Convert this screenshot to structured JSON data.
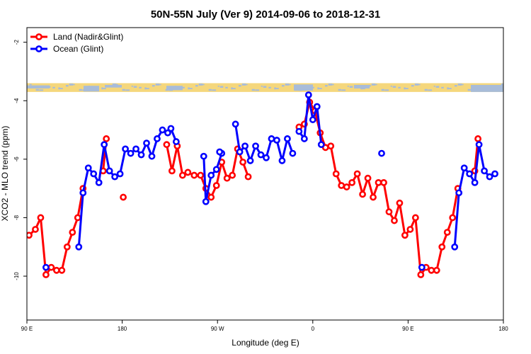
{
  "chart_data": {
    "type": "line",
    "title": "50N-55N July (Ver 9)   2014-09-06 to 2018-12-31",
    "xlabel": "Longitude (deg E)",
    "ylabel": "XCO2 - MLO trend (ppm)",
    "x_ticks": [
      {
        "value": 90,
        "label": "90 E"
      },
      {
        "value": 180,
        "label": "180"
      },
      {
        "value": 270,
        "label": "90 W"
      },
      {
        "value": 360,
        "label": "0"
      },
      {
        "value": 450,
        "label": "90 E"
      },
      {
        "value": 540,
        "label": "180"
      }
    ],
    "y_ticks": [
      {
        "value": -10,
        "label": "-10"
      },
      {
        "value": -8,
        "label": "-8"
      },
      {
        "value": -6,
        "label": "-6"
      },
      {
        "value": -4,
        "label": "-4"
      },
      {
        "value": -2,
        "label": "-2"
      }
    ],
    "xlim": [
      90,
      540
    ],
    "ylim": [
      -11.5,
      -1.5
    ],
    "grid": false,
    "legend_position": "top-left",
    "land_strip": {
      "y_range": [
        -3.7,
        -3.4
      ],
      "land_color": "#f5d77c",
      "ocean_color": "#a8bcd9"
    },
    "series": [
      {
        "name": "Land (Nadir&Glint)",
        "color": "#ff0000",
        "segments": [
          [
            [
              92,
              -8.6
            ],
            [
              98,
              -8.4
            ],
            [
              103,
              -8.0
            ],
            [
              108,
              -9.95
            ],
            [
              113,
              -9.7
            ],
            [
              118,
              -9.8
            ],
            [
              123,
              -9.8
            ],
            [
              128,
              -9.0
            ],
            [
              133,
              -8.5
            ],
            [
              138,
              -8.0
            ],
            [
              143,
              -7.0
            ]
          ],
          [
            [
              162,
              -6.4
            ],
            [
              165,
              -5.3
            ]
          ],
          [
            [
              181,
              -7.3
            ]
          ],
          [
            [
              222,
              -5.5
            ],
            [
              227,
              -6.4
            ],
            [
              232,
              -5.55
            ],
            [
              237,
              -6.55
            ],
            [
              242,
              -6.45
            ],
            [
              248,
              -6.55
            ],
            [
              254,
              -6.55
            ],
            [
              259,
              -7.0
            ],
            [
              264,
              -7.3
            ],
            [
              269,
              -6.9
            ],
            [
              274,
              -6.1
            ],
            [
              279,
              -6.65
            ],
            [
              284,
              -6.55
            ],
            [
              289,
              -5.65
            ],
            [
              294,
              -6.1
            ],
            [
              299,
              -6.6
            ]
          ],
          [
            [
              347,
              -4.9
            ],
            [
              352,
              -4.8
            ],
            [
              357,
              -4.05
            ],
            [
              362,
              -4.35
            ],
            [
              367,
              -5.1
            ],
            [
              372,
              -5.6
            ],
            [
              377,
              -5.55
            ],
            [
              382,
              -6.5
            ],
            [
              387,
              -6.9
            ],
            [
              392,
              -6.95
            ],
            [
              397,
              -6.8
            ],
            [
              402,
              -6.5
            ],
            [
              407,
              -7.2
            ],
            [
              412,
              -6.65
            ],
            [
              417,
              -7.3
            ],
            [
              422,
              -6.8
            ],
            [
              427,
              -6.8
            ],
            [
              432,
              -7.8
            ],
            [
              437,
              -8.1
            ],
            [
              442,
              -7.5
            ],
            [
              447,
              -8.6
            ],
            [
              452,
              -8.4
            ],
            [
              457,
              -8.0
            ],
            [
              462,
              -9.95
            ],
            [
              467,
              -9.7
            ],
            [
              472,
              -9.8
            ],
            [
              477,
              -9.8
            ],
            [
              482,
              -9.0
            ],
            [
              487,
              -8.5
            ],
            [
              492,
              -8.0
            ],
            [
              497,
              -7.0
            ]
          ],
          [
            [
              513,
              -6.4
            ],
            [
              516,
              -5.3
            ]
          ]
        ]
      },
      {
        "name": "Ocean (Glint)",
        "color": "#0000ff",
        "segments": [
          [
            [
              108,
              -9.7
            ]
          ],
          [
            [
              139,
              -9.0
            ],
            [
              143,
              -7.15
            ],
            [
              148,
              -6.3
            ],
            [
              153,
              -6.5
            ],
            [
              158,
              -6.8
            ],
            [
              163,
              -5.5
            ],
            [
              168,
              -6.4
            ],
            [
              173,
              -6.6
            ],
            [
              178,
              -6.5
            ],
            [
              183,
              -5.65
            ],
            [
              188,
              -5.8
            ],
            [
              193,
              -5.65
            ],
            [
              198,
              -5.85
            ],
            [
              203,
              -5.45
            ],
            [
              208,
              -5.9
            ],
            [
              213,
              -5.3
            ],
            [
              218,
              -5.0
            ],
            [
              223,
              -5.1
            ],
            [
              226,
              -4.95
            ],
            [
              231,
              -5.4
            ]
          ],
          [
            [
              257,
              -5.9
            ],
            [
              259,
              -7.45
            ],
            [
              264,
              -6.55
            ],
            [
              269,
              -6.35
            ],
            [
              274,
              -5.8
            ]
          ],
          [
            [
              272,
              -5.75
            ]
          ],
          [
            [
              287,
              -4.8
            ],
            [
              291,
              -5.75
            ],
            [
              296,
              -5.55
            ],
            [
              301,
              -6.05
            ],
            [
              306,
              -5.55
            ],
            [
              311,
              -5.85
            ],
            [
              316,
              -5.95
            ],
            [
              321,
              -5.3
            ],
            [
              326,
              -5.35
            ],
            [
              331,
              -6.05
            ],
            [
              336,
              -5.3
            ],
            [
              341,
              -5.8
            ]
          ],
          [
            [
              347,
              -5.05
            ],
            [
              352,
              -5.3
            ],
            [
              356,
              -3.8
            ],
            [
              360,
              -4.65
            ],
            [
              364,
              -4.2
            ],
            [
              368,
              -5.5
            ]
          ],
          [
            [
              425,
              -5.8
            ]
          ],
          [
            [
              463,
              -9.7
            ]
          ],
          [
            [
              494,
              -9.0
            ],
            [
              498,
              -7.15
            ],
            [
              503,
              -6.3
            ],
            [
              508,
              -6.5
            ],
            [
              513,
              -6.8
            ],
            [
              517,
              -5.5
            ],
            [
              522,
              -6.4
            ],
            [
              527,
              -6.6
            ],
            [
              532,
              -6.5
            ]
          ]
        ]
      }
    ]
  }
}
